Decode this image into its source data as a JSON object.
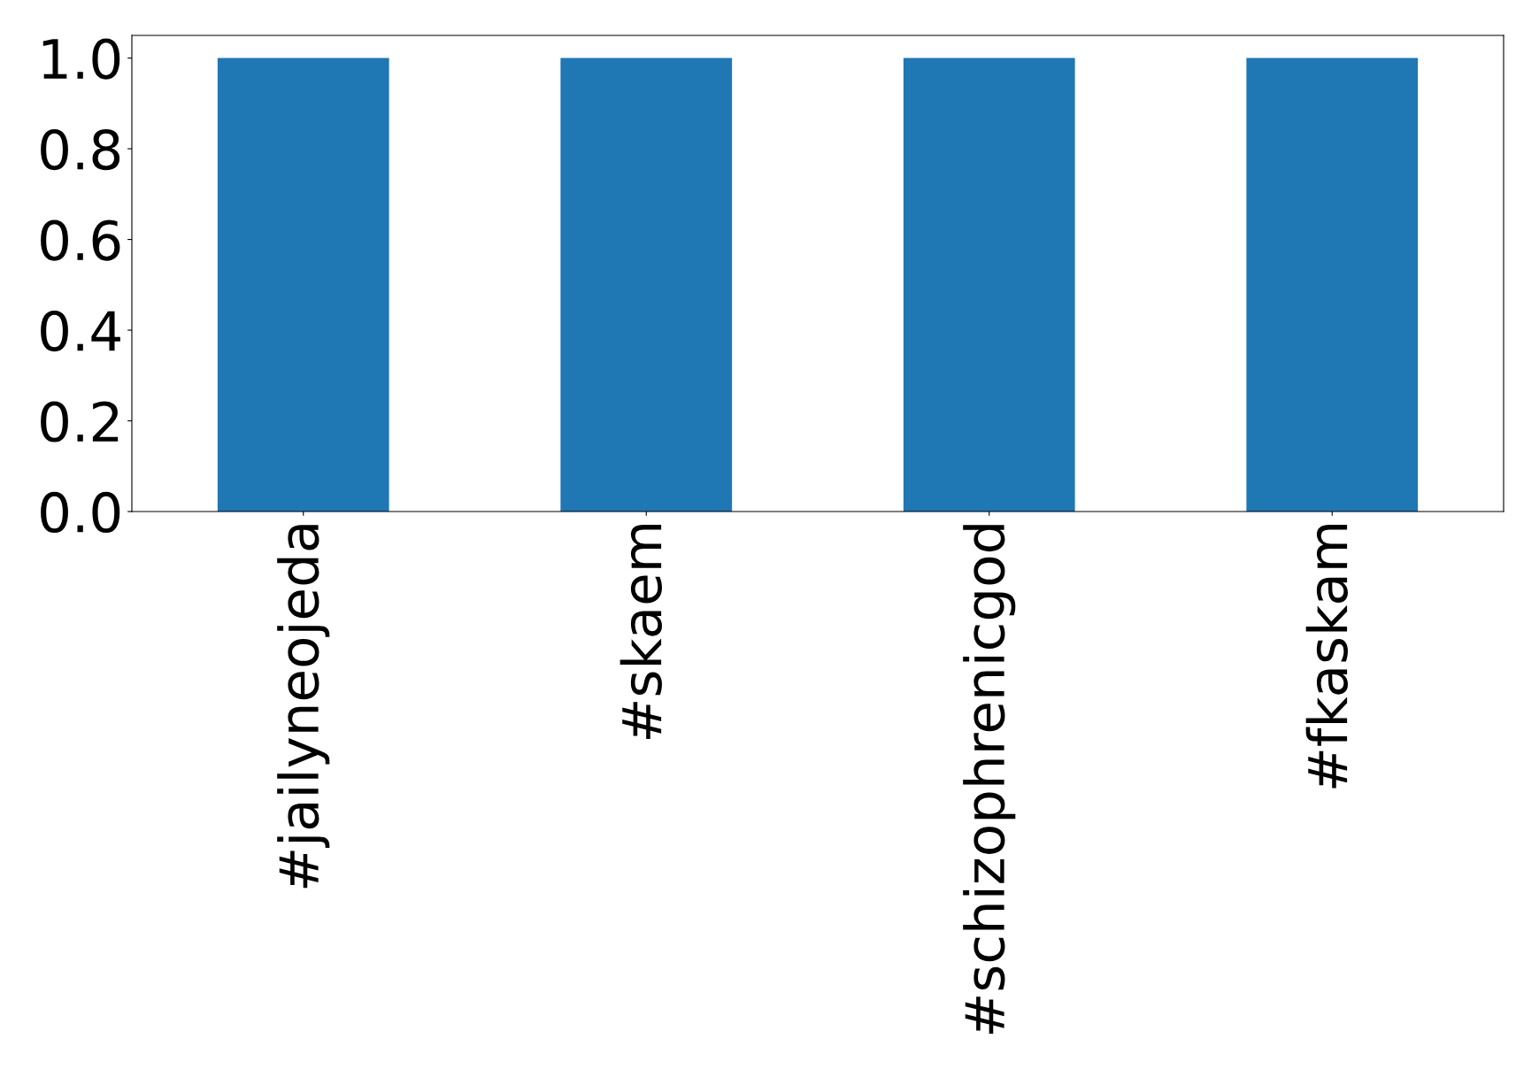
{
  "chart_data": {
    "type": "bar",
    "categories": [
      "#jailyneojeda",
      "#skaem",
      "#schizophrenicgod",
      "#fkaskam"
    ],
    "values": [
      1,
      1,
      1,
      1
    ],
    "color": "#1f77b4",
    "ylim": [
      0,
      1.05
    ],
    "yticks": [
      {
        "value": 0,
        "label": "0.0"
      },
      0.2,
      0.4,
      0.6,
      0.8,
      {
        "value": 1,
        "label": "1.0"
      }
    ],
    "grid": false
  }
}
